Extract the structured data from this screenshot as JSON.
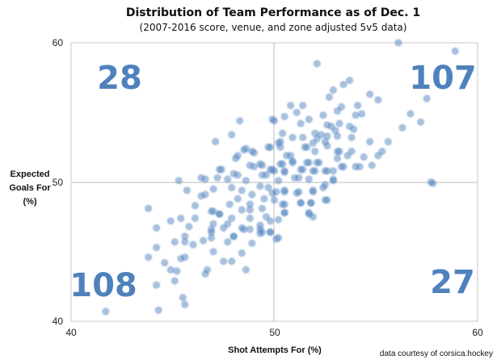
{
  "chart_data": {
    "type": "scatter",
    "title": "Distribution of Team Performance as of Dec. 1",
    "subtitle": "(2007-2016 score, venue, and zone adjusted 5v5 data)",
    "xlabel": "Shot Attempts For (%)",
    "ylabel_lines": [
      "Expected",
      "Goals For",
      "(%)"
    ],
    "xlim": [
      40,
      60
    ],
    "ylim": [
      40,
      60
    ],
    "x_ticks": [
      "40",
      "50",
      "60"
    ],
    "y_ticks": [
      "40",
      "50",
      "60"
    ],
    "grid": false,
    "reference_lines": {
      "x": 50,
      "y": 50
    },
    "point_color": "#4f81bd",
    "quadrant_counts": {
      "top_left": "28",
      "top_right": "107",
      "bottom_left": "108",
      "bottom_right": "27"
    },
    "footer": "data courtesy of corsica.hockey",
    "points": [
      [
        56.1,
        60.0
      ],
      [
        58.9,
        59.4
      ],
      [
        52.1,
        58.5
      ],
      [
        57.5,
        56.0
      ],
      [
        56.7,
        54.9
      ],
      [
        57.2,
        54.3
      ],
      [
        56.3,
        53.9
      ],
      [
        55.6,
        52.9
      ],
      [
        57.7,
        50.0
      ],
      [
        57.8,
        49.9
      ],
      [
        48.3,
        54.4
      ],
      [
        50.0,
        54.4
      ],
      [
        47.9,
        53.4
      ],
      [
        47.1,
        52.9
      ],
      [
        41.7,
        40.7
      ],
      [
        44.3,
        40.8
      ],
      [
        44.2,
        42.6
      ],
      [
        45.5,
        41.7
      ],
      [
        45.6,
        41.2
      ],
      [
        43.8,
        48.1
      ],
      [
        43.8,
        44.6
      ],
      [
        44.2,
        45.3
      ],
      [
        44.2,
        46.7
      ],
      [
        45.1,
        42.9
      ],
      [
        44.9,
        43.7
      ],
      [
        45.2,
        43.6
      ],
      [
        44.6,
        44.2
      ],
      [
        45.4,
        44.5
      ],
      [
        45.6,
        44.6
      ],
      [
        46.7,
        43.7
      ],
      [
        46.6,
        43.4
      ],
      [
        48.6,
        43.7
      ],
      [
        47.9,
        44.3
      ],
      [
        47.5,
        44.3
      ],
      [
        47.0,
        45.0
      ],
      [
        48.4,
        44.9
      ],
      [
        48.9,
        45.6
      ],
      [
        45.6,
        45.7
      ],
      [
        45.1,
        45.7
      ],
      [
        46.0,
        45.5
      ],
      [
        46.5,
        45.8
      ],
      [
        44.9,
        47.2
      ],
      [
        45.4,
        47.4
      ],
      [
        45.8,
        46.8
      ],
      [
        46.1,
        47.4
      ],
      [
        46.1,
        48.3
      ],
      [
        46.4,
        49.0
      ],
      [
        45.7,
        49.4
      ],
      [
        45.3,
        50.1
      ],
      [
        46.9,
        47.9
      ],
      [
        47.3,
        47.7
      ],
      [
        46.9,
        46.6
      ],
      [
        46.9,
        46.0
      ],
      [
        45.6,
        46.1
      ],
      [
        47.7,
        45.7
      ],
      [
        48.0,
        46.1
      ],
      [
        48.4,
        46.7
      ],
      [
        48.8,
        46.6
      ],
      [
        49.3,
        46.6
      ],
      [
        49.3,
        46.3
      ],
      [
        49.8,
        46.4
      ],
      [
        50.2,
        46.0
      ],
      [
        49.8,
        47.2
      ],
      [
        50.2,
        47.3
      ],
      [
        50.1,
        45.9
      ],
      [
        50.4,
        48.4
      ],
      [
        50.5,
        47.8
      ],
      [
        51.3,
        48.5
      ],
      [
        51.8,
        48.5
      ],
      [
        51.7,
        47.8
      ],
      [
        51.9,
        47.5
      ],
      [
        52.5,
        48.7
      ],
      [
        52.4,
        49.6
      ],
      [
        52.9,
        50.1
      ],
      [
        51.9,
        49.3
      ],
      [
        51.1,
        49.2
      ],
      [
        50.5,
        49.3
      ],
      [
        49.9,
        49.2
      ],
      [
        53.7,
        57.3
      ],
      [
        53.4,
        57.0
      ],
      [
        52.9,
        56.6
      ],
      [
        52.7,
        56.1
      ],
      [
        54.7,
        56.3
      ],
      [
        55.1,
        55.9
      ],
      [
        54.1,
        55.5
      ],
      [
        53.3,
        55.4
      ],
      [
        53.1,
        55.1
      ],
      [
        54.3,
        54.9
      ],
      [
        54.0,
        54.8
      ],
      [
        52.4,
        54.8
      ],
      [
        51.4,
        55.5
      ],
      [
        50.8,
        55.5
      ],
      [
        51.1,
        55.0
      ],
      [
        50.5,
        54.7
      ],
      [
        49.9,
        54.5
      ],
      [
        51.7,
        54.5
      ],
      [
        51.3,
        54.2
      ],
      [
        52.6,
        54.1
      ],
      [
        52.8,
        54.0
      ],
      [
        53.2,
        54.2
      ],
      [
        53.7,
        54.0
      ],
      [
        53.9,
        53.8
      ],
      [
        53.8,
        53.2
      ],
      [
        54.7,
        52.9
      ],
      [
        55.3,
        52.2
      ],
      [
        55.1,
        51.9
      ],
      [
        54.4,
        51.8
      ],
      [
        54.8,
        51.2
      ],
      [
        54.2,
        51.1
      ],
      [
        54.0,
        51.1
      ],
      [
        53.6,
        51.9
      ],
      [
        53.8,
        52.2
      ],
      [
        53.1,
        52.2
      ],
      [
        53.3,
        51.1
      ],
      [
        52.6,
        52.6
      ],
      [
        52.1,
        51.4
      ],
      [
        51.6,
        51.4
      ],
      [
        51.9,
        50.8
      ],
      [
        52.5,
        50.8
      ],
      [
        52.9,
        50.8
      ],
      [
        52.1,
        53.1
      ],
      [
        52.0,
        53.5
      ],
      [
        52.3,
        53.4
      ],
      [
        52.5,
        52.9
      ],
      [
        51.9,
        52.8
      ],
      [
        51.5,
        52.5
      ],
      [
        51.4,
        53.2
      ],
      [
        50.9,
        53.2
      ],
      [
        50.4,
        53.5
      ],
      [
        50.3,
        52.9
      ],
      [
        50.3,
        52.5
      ],
      [
        50.6,
        51.9
      ],
      [
        50.9,
        51.4
      ],
      [
        50.3,
        51.3
      ],
      [
        49.9,
        50.9
      ],
      [
        50.5,
        50.8
      ],
      [
        51.3,
        50.9
      ],
      [
        51.0,
        50.3
      ],
      [
        51.7,
        50.2
      ],
      [
        50.2,
        50.1
      ],
      [
        53.1,
        51.7
      ],
      [
        52.6,
        53.3
      ],
      [
        53.1,
        53.3
      ],
      [
        53.0,
        53.7
      ],
      [
        48.9,
        52.2
      ],
      [
        48.5,
        52.3
      ],
      [
        48.2,
        51.9
      ],
      [
        48.1,
        51.7
      ],
      [
        49.7,
        52.5
      ],
      [
        50.2,
        52.8
      ],
      [
        48.8,
        51.2
      ],
      [
        49.3,
        51.3
      ],
      [
        49.8,
        50.9
      ],
      [
        47.3,
        50.9
      ],
      [
        48.0,
        50.6
      ],
      [
        49.4,
        50.5
      ],
      [
        47.2,
        50.3
      ],
      [
        46.4,
        50.3
      ],
      [
        47.7,
        50.2
      ],
      [
        48.6,
        50.1
      ],
      [
        48.6,
        52.4
      ],
      [
        49.0,
        52.1
      ],
      [
        49.8,
        52.5
      ],
      [
        47.4,
        50.9
      ],
      [
        48.2,
        50.5
      ],
      [
        49.0,
        51.1
      ],
      [
        49.4,
        51.2
      ],
      [
        49.6,
        50.5
      ],
      [
        50.0,
        50.8
      ],
      [
        50.4,
        51.3
      ],
      [
        50.5,
        50.7
      ],
      [
        50.9,
        51.5
      ],
      [
        51.4,
        50.9
      ],
      [
        51.7,
        51.4
      ],
      [
        52.0,
        50.8
      ],
      [
        52.2,
        51.4
      ],
      [
        52.6,
        50.8
      ],
      [
        52.9,
        50.2
      ],
      [
        53.4,
        51.1
      ],
      [
        53.2,
        52.2
      ],
      [
        52.0,
        52.2
      ],
      [
        51.6,
        52.5
      ],
      [
        50.8,
        51.9
      ],
      [
        51.2,
        50.3
      ],
      [
        46.6,
        50.2
      ],
      [
        47.0,
        49.5
      ],
      [
        46.6,
        49.1
      ],
      [
        47.9,
        49.6
      ],
      [
        48.4,
        49.4
      ],
      [
        48.9,
        49.1
      ],
      [
        49.3,
        49.7
      ],
      [
        49.7,
        49.6
      ],
      [
        50.1,
        49.3
      ],
      [
        50.5,
        49.4
      ],
      [
        51.2,
        49.3
      ],
      [
        51.9,
        49.4
      ],
      [
        52.5,
        49.8
      ],
      [
        52.6,
        48.7
      ],
      [
        51.8,
        48.5
      ],
      [
        51.3,
        48.5
      ],
      [
        50.5,
        48.4
      ],
      [
        50.0,
        48.7
      ],
      [
        49.5,
        48.8
      ],
      [
        48.8,
        48.4
      ],
      [
        48.2,
        48.8
      ],
      [
        47.8,
        48.4
      ],
      [
        47.0,
        47.9
      ],
      [
        47.3,
        47.7
      ],
      [
        48.4,
        48.0
      ],
      [
        48.8,
        48.0
      ],
      [
        49.4,
        48.1
      ],
      [
        50.5,
        47.8
      ],
      [
        51.7,
        47.7
      ],
      [
        47.9,
        47.4
      ],
      [
        47.7,
        47.0
      ],
      [
        48.8,
        47.4
      ],
      [
        49.6,
        47.5
      ],
      [
        47.0,
        47.0
      ],
      [
        47.5,
        46.7
      ],
      [
        49.3,
        46.9
      ],
      [
        49.4,
        46.4
      ],
      [
        48.5,
        46.6
      ],
      [
        46.9,
        46.4
      ],
      [
        48.0,
        46.1
      ],
      [
        49.8,
        46.4
      ]
    ]
  }
}
